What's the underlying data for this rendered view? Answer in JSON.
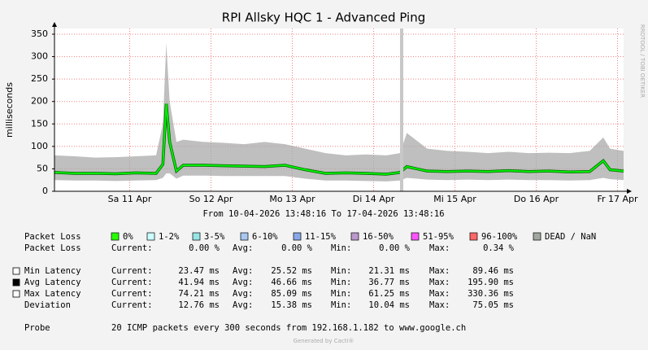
{
  "chart_data": {
    "type": "smokeping",
    "title": "RPI Allsky HQC 1 - Advanced Ping",
    "y_label": "milliseconds",
    "side_text": "RRDTOOL / TOBI OETIKER",
    "period": "From 10-04-2026 13:48:16 To 17-04-2026 13:48:16",
    "ylim": [
      0,
      350
    ],
    "yticks": [
      0,
      50,
      100,
      150,
      200,
      250,
      300,
      350
    ],
    "grid": true,
    "xlim": [
      0,
      168
    ],
    "xticks": [
      {
        "value": 22.2,
        "label": "Sa 11 Apr"
      },
      {
        "value": 46.2,
        "label": "So 12 Apr"
      },
      {
        "value": 70.2,
        "label": "Mo 13 Apr"
      },
      {
        "value": 94.2,
        "label": "Di 14 Apr"
      },
      {
        "value": 118.2,
        "label": "Mi 15 Apr"
      },
      {
        "value": 142.2,
        "label": "Do 16 Apr"
      },
      {
        "value": 166.2,
        "label": "Fr 17 Apr"
      }
    ],
    "x": [
      0,
      6,
      12,
      18,
      24,
      30,
      32,
      33,
      34,
      36,
      38,
      44,
      50,
      56,
      62,
      68,
      74,
      80,
      86,
      92,
      98,
      102,
      104,
      110,
      116,
      122,
      128,
      134,
      140,
      146,
      152,
      158,
      162,
      164,
      168
    ],
    "series": [
      {
        "name": "Max Latency",
        "color": "#aaaaaa",
        "values": [
          80,
          78,
          75,
          76,
          78,
          80,
          150,
          330,
          200,
          110,
          115,
          110,
          108,
          105,
          110,
          105,
          95,
          85,
          80,
          82,
          80,
          85,
          130,
          95,
          90,
          88,
          85,
          88,
          85,
          86,
          85,
          90,
          120,
          95,
          90
        ]
      },
      {
        "name": "Min Latency",
        "color": "#aaaaaa",
        "values": [
          25,
          24,
          24,
          23,
          24,
          25,
          30,
          40,
          40,
          28,
          35,
          35,
          34,
          34,
          34,
          34,
          28,
          24,
          24,
          23,
          22,
          24,
          30,
          26,
          25,
          26,
          25,
          26,
          25,
          25,
          24,
          25,
          30,
          27,
          25
        ]
      },
      {
        "name": "Avg Latency",
        "color": "#00ee00",
        "values": [
          42,
          40,
          40,
          39,
          41,
          40,
          60,
          195,
          110,
          45,
          58,
          58,
          57,
          56,
          55,
          58,
          48,
          40,
          41,
          40,
          38,
          42,
          55,
          45,
          44,
          45,
          44,
          46,
          44,
          45,
          43,
          44,
          68,
          48,
          45
        ]
      }
    ],
    "loss_legend": {
      "label": "Packet Loss",
      "items": [
        {
          "name": "0%",
          "color": "#26ff00"
        },
        {
          "name": "1-2%",
          "color": "#ccffff"
        },
        {
          "name": "3-5%",
          "color": "#99e5e5"
        },
        {
          "name": "6-10%",
          "color": "#a8c8f0"
        },
        {
          "name": "11-15%",
          "color": "#88a8e8"
        },
        {
          "name": "16-50%",
          "color": "#bb99cc"
        },
        {
          "name": "51-95%",
          "color": "#ff55ff"
        },
        {
          "name": "96-100%",
          "color": "#ff6666"
        },
        {
          "name": "DEAD / NaN",
          "color": "#a0a8a0"
        }
      ]
    },
    "stats": [
      {
        "label": "Packet Loss",
        "cells": [
          "Current:",
          "0.00 %",
          "Avg:",
          "0.00 %",
          "Min:",
          "0.00 %",
          "Max:",
          "0.34 %"
        ]
      },
      {
        "label": "Min Latency",
        "cells": [
          "Current:",
          "23.47 ms",
          "Avg:",
          "25.52 ms",
          "Min:",
          "21.31 ms",
          "Max:",
          "89.46 ms"
        ]
      },
      {
        "label": "Avg Latency",
        "cells": [
          "Current:",
          "41.94 ms",
          "Avg:",
          "46.66 ms",
          "Min:",
          "36.77 ms",
          "Max:",
          "195.90 ms"
        ]
      },
      {
        "label": "Max Latency",
        "cells": [
          "Current:",
          "74.21 ms",
          "Avg:",
          "85.09 ms",
          "Min:",
          "61.25 ms",
          "Max:",
          "330.36 ms"
        ]
      },
      {
        "label": "Deviation",
        "cells": [
          "Current:",
          "12.76 ms",
          "Avg:",
          "15.38 ms",
          "Min:",
          "10.04 ms",
          "Max:",
          "75.05 ms"
        ]
      }
    ],
    "probe": {
      "label": "Probe",
      "text": "20 ICMP packets every 300 seconds from 192.168.1.182 to www.google.ch"
    },
    "footer": "Generated by Cacti®"
  }
}
